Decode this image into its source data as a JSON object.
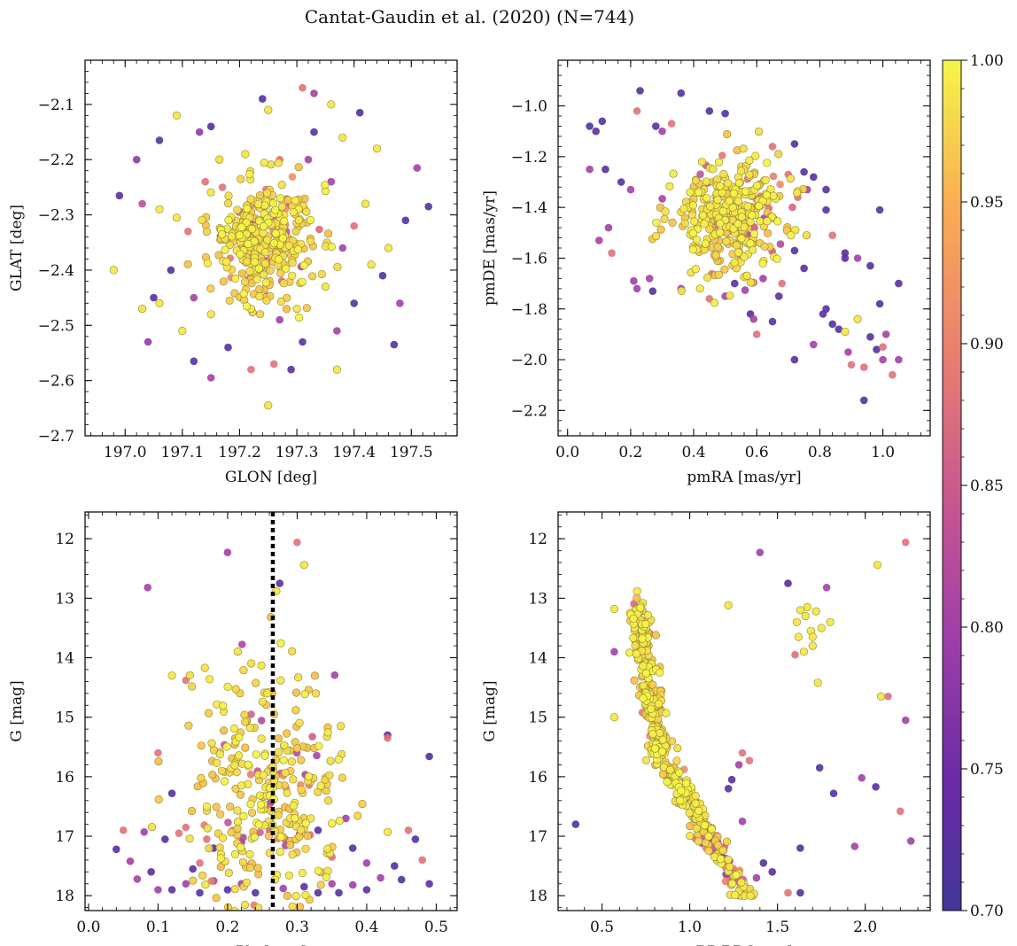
{
  "title": "Cantat-Gaudin et al. (2020) (N=744)",
  "colorbar": {
    "min": 0.7,
    "max": 1.0,
    "ticks": [
      0.7,
      0.75,
      0.8,
      0.85,
      0.9,
      0.95,
      1.0
    ],
    "tick_labels": [
      "0.70",
      "0.75",
      "0.80",
      "0.85",
      "0.90",
      "0.95",
      "1.00"
    ],
    "colormap": "plasma"
  },
  "chart_data": [
    {
      "type": "scatter",
      "id": "radec",
      "xlabel": "GLON [deg]",
      "ylabel": "GLAT [deg]",
      "xlim": [
        196.93,
        197.58
      ],
      "ylim": [
        -2.7,
        -2.02
      ],
      "xticks": [
        197.0,
        197.1,
        197.2,
        197.3,
        197.4,
        197.5
      ],
      "xtick_labels": [
        "197.0",
        "197.1",
        "197.2",
        "197.3",
        "197.4",
        "197.5"
      ],
      "yticks": [
        -2.7,
        -2.6,
        -2.5,
        -2.4,
        -2.3,
        -2.2,
        -2.1
      ],
      "ytick_labels": [
        "−2.7",
        "−2.6",
        "−2.5",
        "−2.4",
        "−2.3",
        "−2.2",
        "−2.1"
      ],
      "points": [
        [
          197.25,
          -2.645,
          0.99
        ],
        [
          196.99,
          -2.265,
          0.72
        ],
        [
          196.98,
          -2.4,
          0.99
        ],
        [
          197.03,
          -2.28,
          0.83
        ],
        [
          197.04,
          -2.53,
          0.78
        ],
        [
          197.02,
          -2.2,
          0.78
        ],
        [
          197.09,
          -2.12,
          0.99
        ],
        [
          197.06,
          -2.165,
          0.72
        ],
        [
          197.13,
          -2.15,
          0.78
        ],
        [
          197.15,
          -2.14,
          0.72
        ],
        [
          197.24,
          -2.09,
          0.72
        ],
        [
          197.25,
          -2.11,
          0.99
        ],
        [
          197.31,
          -2.07,
          0.88
        ],
        [
          197.33,
          -2.08,
          0.8
        ],
        [
          197.36,
          -2.1,
          0.99
        ],
        [
          197.41,
          -2.115,
          0.72
        ],
        [
          197.38,
          -2.16,
          0.99
        ],
        [
          197.44,
          -2.18,
          0.99
        ],
        [
          197.51,
          -2.215,
          0.8
        ],
        [
          197.53,
          -2.285,
          0.72
        ],
        [
          197.49,
          -2.31,
          0.72
        ],
        [
          197.46,
          -2.36,
          0.99
        ],
        [
          197.48,
          -2.46,
          0.8
        ],
        [
          197.47,
          -2.535,
          0.72
        ],
        [
          197.4,
          -2.46,
          0.72
        ],
        [
          197.37,
          -2.58,
          0.99
        ],
        [
          197.29,
          -2.58,
          0.72
        ],
        [
          197.22,
          -2.58,
          0.88
        ],
        [
          197.26,
          -2.57,
          0.88
        ],
        [
          197.15,
          -2.595,
          0.8
        ],
        [
          197.12,
          -2.565,
          0.72
        ],
        [
          197.1,
          -2.51,
          0.99
        ],
        [
          197.06,
          -2.46,
          0.99
        ],
        [
          197.05,
          -2.45,
          0.72
        ],
        [
          197.03,
          -2.47,
          0.99
        ],
        [
          197.08,
          -2.4,
          0.72
        ],
        [
          197.43,
          -2.39,
          0.99
        ],
        [
          197.45,
          -2.41,
          0.72
        ],
        [
          197.33,
          -2.15,
          0.72
        ],
        [
          197.32,
          -2.2,
          0.8
        ],
        [
          197.21,
          -2.19,
          0.99
        ],
        [
          197.27,
          -2.2,
          0.88
        ],
        [
          197.17,
          -2.25,
          0.88
        ],
        [
          197.14,
          -2.24,
          0.88
        ],
        [
          197.36,
          -2.24,
          0.8
        ],
        [
          197.37,
          -2.51,
          0.8
        ],
        [
          197.31,
          -2.53,
          0.72
        ],
        [
          197.27,
          -2.49,
          0.8
        ],
        [
          197.18,
          -2.54,
          0.72
        ],
        [
          197.09,
          -2.305,
          0.99
        ],
        [
          197.06,
          -2.29,
          0.99
        ],
        [
          197.11,
          -2.33,
          0.88
        ],
        [
          197.4,
          -2.32,
          0.88
        ],
        [
          197.42,
          -2.28,
          0.99
        ],
        [
          197.38,
          -2.36,
          0.8
        ],
        [
          197.35,
          -2.43,
          0.99
        ],
        [
          197.12,
          -2.45,
          0.8
        ],
        [
          197.15,
          -2.48,
          0.99
        ],
        [
          197.22,
          -2.47,
          0.99
        ],
        [
          197.3,
          -2.47,
          0.99
        ]
      ],
      "cluster": {
        "cx": 197.245,
        "cy": -2.345,
        "sx": 0.045,
        "sy": 0.05,
        "n": 360,
        "seed": 11
      }
    },
    {
      "type": "scatter",
      "id": "pm",
      "xlabel": "pmRA [mas/yr]",
      "ylabel": "pmDE [mas/yr]",
      "xlim": [
        -0.03,
        1.15
      ],
      "ylim": [
        -2.3,
        -0.82
      ],
      "xticks": [
        0.0,
        0.2,
        0.4,
        0.6,
        0.8,
        1.0
      ],
      "xtick_labels": [
        "0.0",
        "0.2",
        "0.4",
        "0.6",
        "0.8",
        "1.0"
      ],
      "yticks": [
        -2.2,
        -2.0,
        -1.8,
        -1.6,
        -1.4,
        -1.2,
        -1.0
      ],
      "ytick_labels": [
        "−2.2",
        "−2.0",
        "−1.8",
        "−1.6",
        "−1.4",
        "−1.2",
        "−1.0"
      ],
      "points": [
        [
          0.23,
          -0.94,
          0.72
        ],
        [
          0.36,
          -0.95,
          0.72
        ],
        [
          0.22,
          -1.02,
          0.88
        ],
        [
          0.07,
          -1.08,
          0.72
        ],
        [
          0.11,
          -1.06,
          0.72
        ],
        [
          0.09,
          -1.1,
          0.72
        ],
        [
          0.07,
          -1.25,
          0.8
        ],
        [
          0.12,
          -1.25,
          0.72
        ],
        [
          0.17,
          -1.3,
          0.72
        ],
        [
          0.2,
          -1.33,
          0.8
        ],
        [
          0.13,
          -1.48,
          0.8
        ],
        [
          0.1,
          -1.53,
          0.8
        ],
        [
          0.14,
          -1.58,
          0.88
        ],
        [
          0.21,
          -1.69,
          0.8
        ],
        [
          0.22,
          -1.72,
          0.8
        ],
        [
          0.27,
          -1.73,
          0.72
        ],
        [
          0.26,
          -1.68,
          0.8
        ],
        [
          0.36,
          -1.72,
          0.8
        ],
        [
          0.42,
          -1.72,
          0.99
        ],
        [
          0.5,
          -1.75,
          0.8
        ],
        [
          0.53,
          -1.7,
          0.72
        ],
        [
          0.58,
          -1.82,
          0.72
        ],
        [
          0.6,
          -1.9,
          0.88
        ],
        [
          0.59,
          -1.84,
          0.8
        ],
        [
          0.65,
          -1.85,
          0.72
        ],
        [
          0.67,
          -1.75,
          0.72
        ],
        [
          0.72,
          -2.0,
          0.72
        ],
        [
          0.78,
          -1.94,
          0.8
        ],
        [
          0.81,
          -1.82,
          0.72
        ],
        [
          0.82,
          -1.8,
          0.72
        ],
        [
          0.84,
          -1.86,
          0.72
        ],
        [
          0.86,
          -1.88,
          0.72
        ],
        [
          0.88,
          -1.89,
          0.99
        ],
        [
          0.89,
          -1.97,
          0.8
        ],
        [
          0.9,
          -2.02,
          0.88
        ],
        [
          0.92,
          -1.84,
          0.99
        ],
        [
          0.94,
          -2.03,
          0.88
        ],
        [
          0.94,
          -2.16,
          0.72
        ],
        [
          0.96,
          -1.91,
          0.72
        ],
        [
          0.98,
          -1.96,
          0.72
        ],
        [
          1.0,
          -1.95,
          0.88
        ],
        [
          1.01,
          -1.9,
          0.8
        ],
        [
          0.99,
          -1.78,
          0.72
        ],
        [
          1.0,
          -2.0,
          0.8
        ],
        [
          1.03,
          -2.06,
          0.88
        ],
        [
          1.05,
          -2.0,
          0.8
        ],
        [
          1.05,
          -1.7,
          0.72
        ],
        [
          0.99,
          -1.41,
          0.72
        ],
        [
          0.96,
          -1.63,
          0.72
        ],
        [
          0.92,
          -1.6,
          0.8
        ],
        [
          0.88,
          -1.58,
          0.72
        ],
        [
          0.88,
          -1.6,
          0.72
        ],
        [
          0.84,
          -1.51,
          0.88
        ],
        [
          0.82,
          -1.41,
          0.72
        ],
        [
          0.82,
          -1.33,
          0.72
        ],
        [
          0.78,
          -1.28,
          0.72
        ],
        [
          0.76,
          -1.33,
          0.8
        ],
        [
          0.73,
          -1.36,
          0.88
        ],
        [
          0.75,
          -1.26,
          0.72
        ],
        [
          0.7,
          -1.27,
          0.88
        ],
        [
          0.72,
          -1.15,
          0.72
        ],
        [
          0.65,
          -1.16,
          0.88
        ],
        [
          0.5,
          -1.03,
          0.72
        ],
        [
          0.45,
          -1.02,
          0.72
        ],
        [
          0.33,
          -1.07,
          0.88
        ],
        [
          0.3,
          -1.1,
          0.8
        ],
        [
          0.28,
          -1.08,
          0.72
        ],
        [
          0.72,
          -1.57,
          0.72
        ],
        [
          0.75,
          -1.64,
          0.72
        ],
        [
          0.68,
          -1.7,
          0.88
        ],
        [
          0.62,
          -1.68,
          0.8
        ],
        [
          0.45,
          -1.76,
          0.88
        ]
      ],
      "cluster": {
        "cx": 0.51,
        "cy": -1.45,
        "sx": 0.09,
        "sy": 0.11,
        "n": 360,
        "seed": 23
      }
    },
    {
      "type": "scatter",
      "id": "plx",
      "xlabel": "Plx [mas]",
      "ylabel": "G [mag]",
      "xlim": [
        -0.005,
        0.53
      ],
      "ylim": [
        18.25,
        11.55
      ],
      "xticks": [
        0.0,
        0.1,
        0.2,
        0.3,
        0.4,
        0.5
      ],
      "xtick_labels": [
        "0.0",
        "0.1",
        "0.2",
        "0.3",
        "0.4",
        "0.5"
      ],
      "yticks": [
        12,
        13,
        14,
        15,
        16,
        17,
        18
      ],
      "ytick_labels": [
        "12",
        "13",
        "14",
        "15",
        "16",
        "17",
        "18"
      ],
      "vline": 0.265,
      "points": [
        [
          0.2,
          12.23,
          0.8
        ],
        [
          0.3,
          12.06,
          0.88
        ],
        [
          0.31,
          12.44,
          0.99
        ],
        [
          0.275,
          12.75,
          0.72
        ],
        [
          0.085,
          12.82,
          0.8
        ],
        [
          0.27,
          12.88,
          0.99
        ],
        [
          0.14,
          14.38,
          0.88
        ],
        [
          0.12,
          14.3,
          0.99
        ],
        [
          0.43,
          15.3,
          0.72
        ],
        [
          0.43,
          15.35,
          0.88
        ],
        [
          0.1,
          15.6,
          0.88
        ],
        [
          0.49,
          15.66,
          0.72
        ],
        [
          0.12,
          16.28,
          0.72
        ],
        [
          0.04,
          17.22,
          0.72
        ],
        [
          0.05,
          16.9,
          0.88
        ],
        [
          0.08,
          16.93,
          0.8
        ],
        [
          0.06,
          17.42,
          0.8
        ],
        [
          0.07,
          17.72,
          0.8
        ],
        [
          0.09,
          17.6,
          0.72
        ],
        [
          0.1,
          17.9,
          0.8
        ],
        [
          0.46,
          16.9,
          0.88
        ],
        [
          0.47,
          17.05,
          0.72
        ],
        [
          0.48,
          17.4,
          0.88
        ],
        [
          0.49,
          17.8,
          0.72
        ],
        [
          0.45,
          17.73,
          0.72
        ],
        [
          0.43,
          16.93,
          0.99
        ],
        [
          0.42,
          17.7,
          0.8
        ],
        [
          0.4,
          17.9,
          0.72
        ],
        [
          0.38,
          17.82,
          0.8
        ],
        [
          0.36,
          17.95,
          0.72
        ],
        [
          0.35,
          17.8,
          0.8
        ],
        [
          0.33,
          17.95,
          0.72
        ],
        [
          0.31,
          17.85,
          0.72
        ],
        [
          0.28,
          17.88,
          0.8
        ],
        [
          0.24,
          17.95,
          0.72
        ],
        [
          0.22,
          17.8,
          0.8
        ],
        [
          0.2,
          17.9,
          0.72
        ],
        [
          0.18,
          17.75,
          0.8
        ],
        [
          0.16,
          17.95,
          0.72
        ],
        [
          0.14,
          17.8,
          0.8
        ],
        [
          0.12,
          17.9,
          0.72
        ],
        [
          0.16,
          17.45,
          0.88
        ],
        [
          0.18,
          17.2,
          0.72
        ],
        [
          0.22,
          17.1,
          0.8
        ],
        [
          0.38,
          17.2,
          0.72
        ],
        [
          0.4,
          17.45,
          0.8
        ],
        [
          0.44,
          17.5,
          0.72
        ],
        [
          0.11,
          17.05,
          0.72
        ],
        [
          0.13,
          16.95,
          0.88
        ],
        [
          0.15,
          17.55,
          0.72
        ],
        [
          0.35,
          17.35,
          0.88
        ],
        [
          0.37,
          16.7,
          0.8
        ],
        [
          0.33,
          16.9,
          0.72
        ],
        [
          0.14,
          16.85,
          0.88
        ],
        [
          0.17,
          17.05,
          0.88
        ]
      ],
      "cluster": {
        "cx": 0.262,
        "cy": 16.4,
        "sx": 0.055,
        "sy": 1.1,
        "n": 330,
        "seed": 37
      }
    },
    {
      "type": "scatter",
      "id": "cmd",
      "xlabel": "BP-RP [mag]",
      "ylabel": "G [mag]",
      "xlim": [
        0.25,
        2.37
      ],
      "ylim": [
        18.25,
        11.55
      ],
      "xticks": [
        0.5,
        1.0,
        1.5,
        2.0
      ],
      "xtick_labels": [
        "0.5",
        "1.0",
        "1.5",
        "2.0"
      ],
      "yticks": [
        12,
        13,
        14,
        15,
        16,
        17,
        18
      ],
      "ytick_labels": [
        "12",
        "13",
        "14",
        "15",
        "16",
        "17",
        "18"
      ],
      "points": [
        [
          2.23,
          12.06,
          0.88
        ],
        [
          2.07,
          12.44,
          0.99
        ],
        [
          1.4,
          12.23,
          0.8
        ],
        [
          1.56,
          12.75,
          0.72
        ],
        [
          1.78,
          12.82,
          0.8
        ],
        [
          0.35,
          16.8,
          0.72
        ],
        [
          0.57,
          13.9,
          0.8
        ],
        [
          0.57,
          13.18,
          0.99
        ],
        [
          0.57,
          15.0,
          0.99
        ],
        [
          0.7,
          12.88,
          0.99
        ],
        [
          1.22,
          13.12,
          0.99
        ],
        [
          1.8,
          13.4,
          0.99
        ],
        [
          1.73,
          14.42,
          0.99
        ],
        [
          2.09,
          14.65,
          0.99
        ],
        [
          2.13,
          14.65,
          0.88
        ],
        [
          2.23,
          15.05,
          0.8
        ],
        [
          2.26,
          17.08,
          0.8
        ],
        [
          2.2,
          16.58,
          0.88
        ],
        [
          2.06,
          16.17,
          0.72
        ],
        [
          1.98,
          16.02,
          0.8
        ],
        [
          1.94,
          17.17,
          0.8
        ],
        [
          1.82,
          16.28,
          0.72
        ],
        [
          1.74,
          15.85,
          0.72
        ],
        [
          1.63,
          17.2,
          0.72
        ],
        [
          1.63,
          17.95,
          0.72
        ],
        [
          1.56,
          17.95,
          0.88
        ],
        [
          1.47,
          17.6,
          0.72
        ],
        [
          1.42,
          17.45,
          0.72
        ],
        [
          1.38,
          17.7,
          0.8
        ],
        [
          1.3,
          16.75,
          0.8
        ],
        [
          1.28,
          15.8,
          0.8
        ],
        [
          1.34,
          15.73,
          0.88
        ],
        [
          1.24,
          16.05,
          0.72
        ],
        [
          1.22,
          16.2,
          0.72
        ],
        [
          1.3,
          15.6,
          0.88
        ],
        [
          1.63,
          13.2,
          0.99
        ],
        [
          1.66,
          13.3,
          0.99
        ],
        [
          1.69,
          13.55,
          0.99
        ],
        [
          1.7,
          13.8,
          0.99
        ],
        [
          1.62,
          13.65,
          0.99
        ],
        [
          1.65,
          13.9,
          0.99
        ],
        [
          1.6,
          13.95,
          0.88
        ],
        [
          1.72,
          13.22,
          0.99
        ],
        [
          1.75,
          13.5,
          0.99
        ],
        [
          1.67,
          13.15,
          0.99
        ],
        [
          1.7,
          13.65,
          0.99
        ],
        [
          1.61,
          13.4,
          0.99
        ]
      ],
      "sequence": {
        "n": 460,
        "seed": 53
      }
    }
  ]
}
